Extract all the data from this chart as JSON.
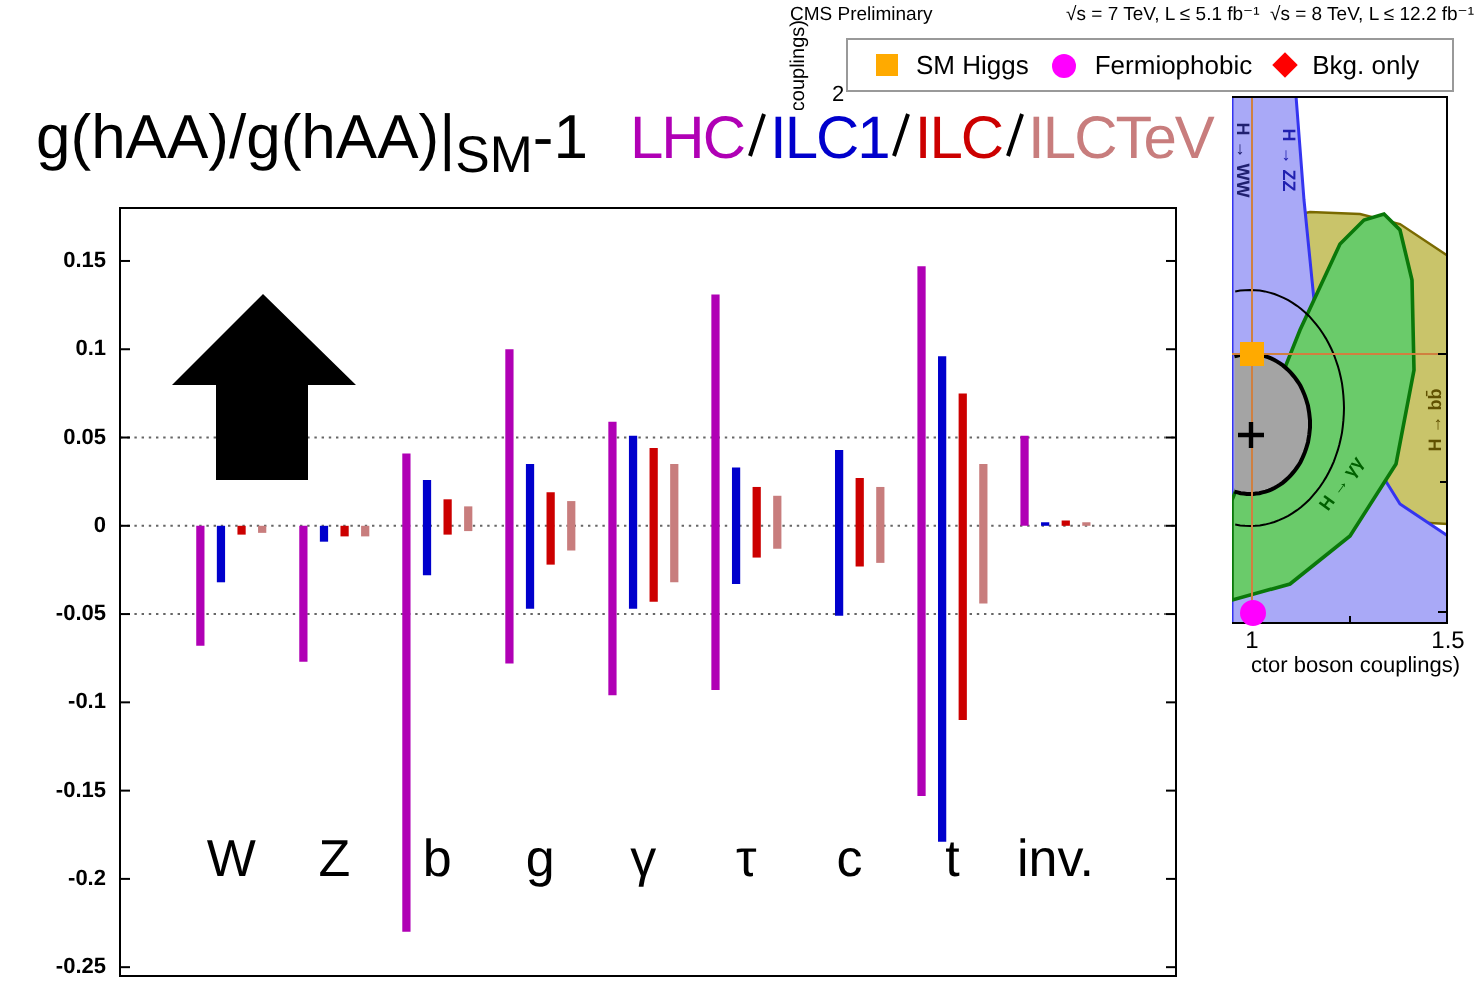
{
  "chart_data": [
    {
      "type": "bar",
      "title": "g(hAA)/g(hAA)|$_{SM}$-1",
      "categories": [
        "W",
        "Z",
        "b",
        "g",
        "γ",
        "τ",
        "c",
        "t",
        "inv."
      ],
      "series": [
        {
          "name": "LHC",
          "color": "#b000b5",
          "base": [
            -0.068,
            -0.077,
            -0.23,
            -0.078,
            -0.096,
            -0.093,
            null,
            -0.153,
            0
          ],
          "values": [
            0.068,
            0.077,
            0.271,
            0.178,
            0.155,
            0.224,
            null,
            0.3,
            0.051
          ]
        },
        {
          "name": "ILC1",
          "color": "#0000cc",
          "base": [
            -0.032,
            -0.009,
            -0.028,
            -0.047,
            -0.047,
            -0.033,
            -0.051,
            -0.179,
            0
          ],
          "values": [
            0.032,
            0.009,
            0.054,
            0.082,
            0.098,
            0.066,
            0.094,
            0.275,
            0.002
          ]
        },
        {
          "name": "ILC",
          "color": "#cc0000",
          "base": [
            -0.005,
            -0.006,
            -0.005,
            -0.022,
            -0.043,
            -0.018,
            -0.023,
            -0.11,
            0
          ],
          "values": [
            0.005,
            0.006,
            0.02,
            0.041,
            0.087,
            0.04,
            0.05,
            0.185,
            0.003
          ]
        },
        {
          "name": "ILCTeV",
          "color": "#c87d7d",
          "base": [
            -0.004,
            -0.006,
            -0.003,
            -0.014,
            -0.032,
            -0.013,
            -0.021,
            -0.044,
            0
          ],
          "values": [
            0.004,
            0.006,
            0.014,
            0.028,
            0.067,
            0.03,
            0.043,
            0.079,
            0.002
          ]
        }
      ],
      "ylim": [
        -0.255,
        0.18
      ],
      "yticks": [
        0.15,
        0.1,
        0.05,
        0,
        -0.05,
        -0.1,
        -0.15,
        -0.2,
        -0.25
      ],
      "ref_lines": [
        {
          "axis": "y",
          "value": 0.05,
          "line_style": "dotted",
          "color": "#666666"
        },
        {
          "axis": "y",
          "value": 0,
          "line_style": "dotted",
          "color": "#666666"
        },
        {
          "axis": "y",
          "value": -0.05,
          "line_style": "dotted",
          "color": "#666666"
        }
      ],
      "legend": "top"
    },
    {
      "type": "other",
      "title": "CMS Preliminary",
      "subtitle": "√s = 7 TeV, L ≤ 5.1 fb⁻¹  √s = 8 TeV, L ≤ 12.2 fb⁻¹",
      "xlabel": "ctor boson couplings)",
      "ylabel": "couplings)",
      "series": [
        {
          "name": "SM Higgs",
          "color": "#ffaa00",
          "marker": "square"
        },
        {
          "name": "Fermiophobic",
          "color": "#ff00ff",
          "marker": "circle"
        },
        {
          "name": "Bkg. only",
          "color": "#ff0000",
          "marker": "diamond"
        }
      ],
      "annotations": [
        "H → WW",
        "H → ZZ",
        "H → γγ",
        "H → bb̄",
        "1",
        "1.5",
        "2"
      ],
      "legend": "top"
    }
  ]
}
